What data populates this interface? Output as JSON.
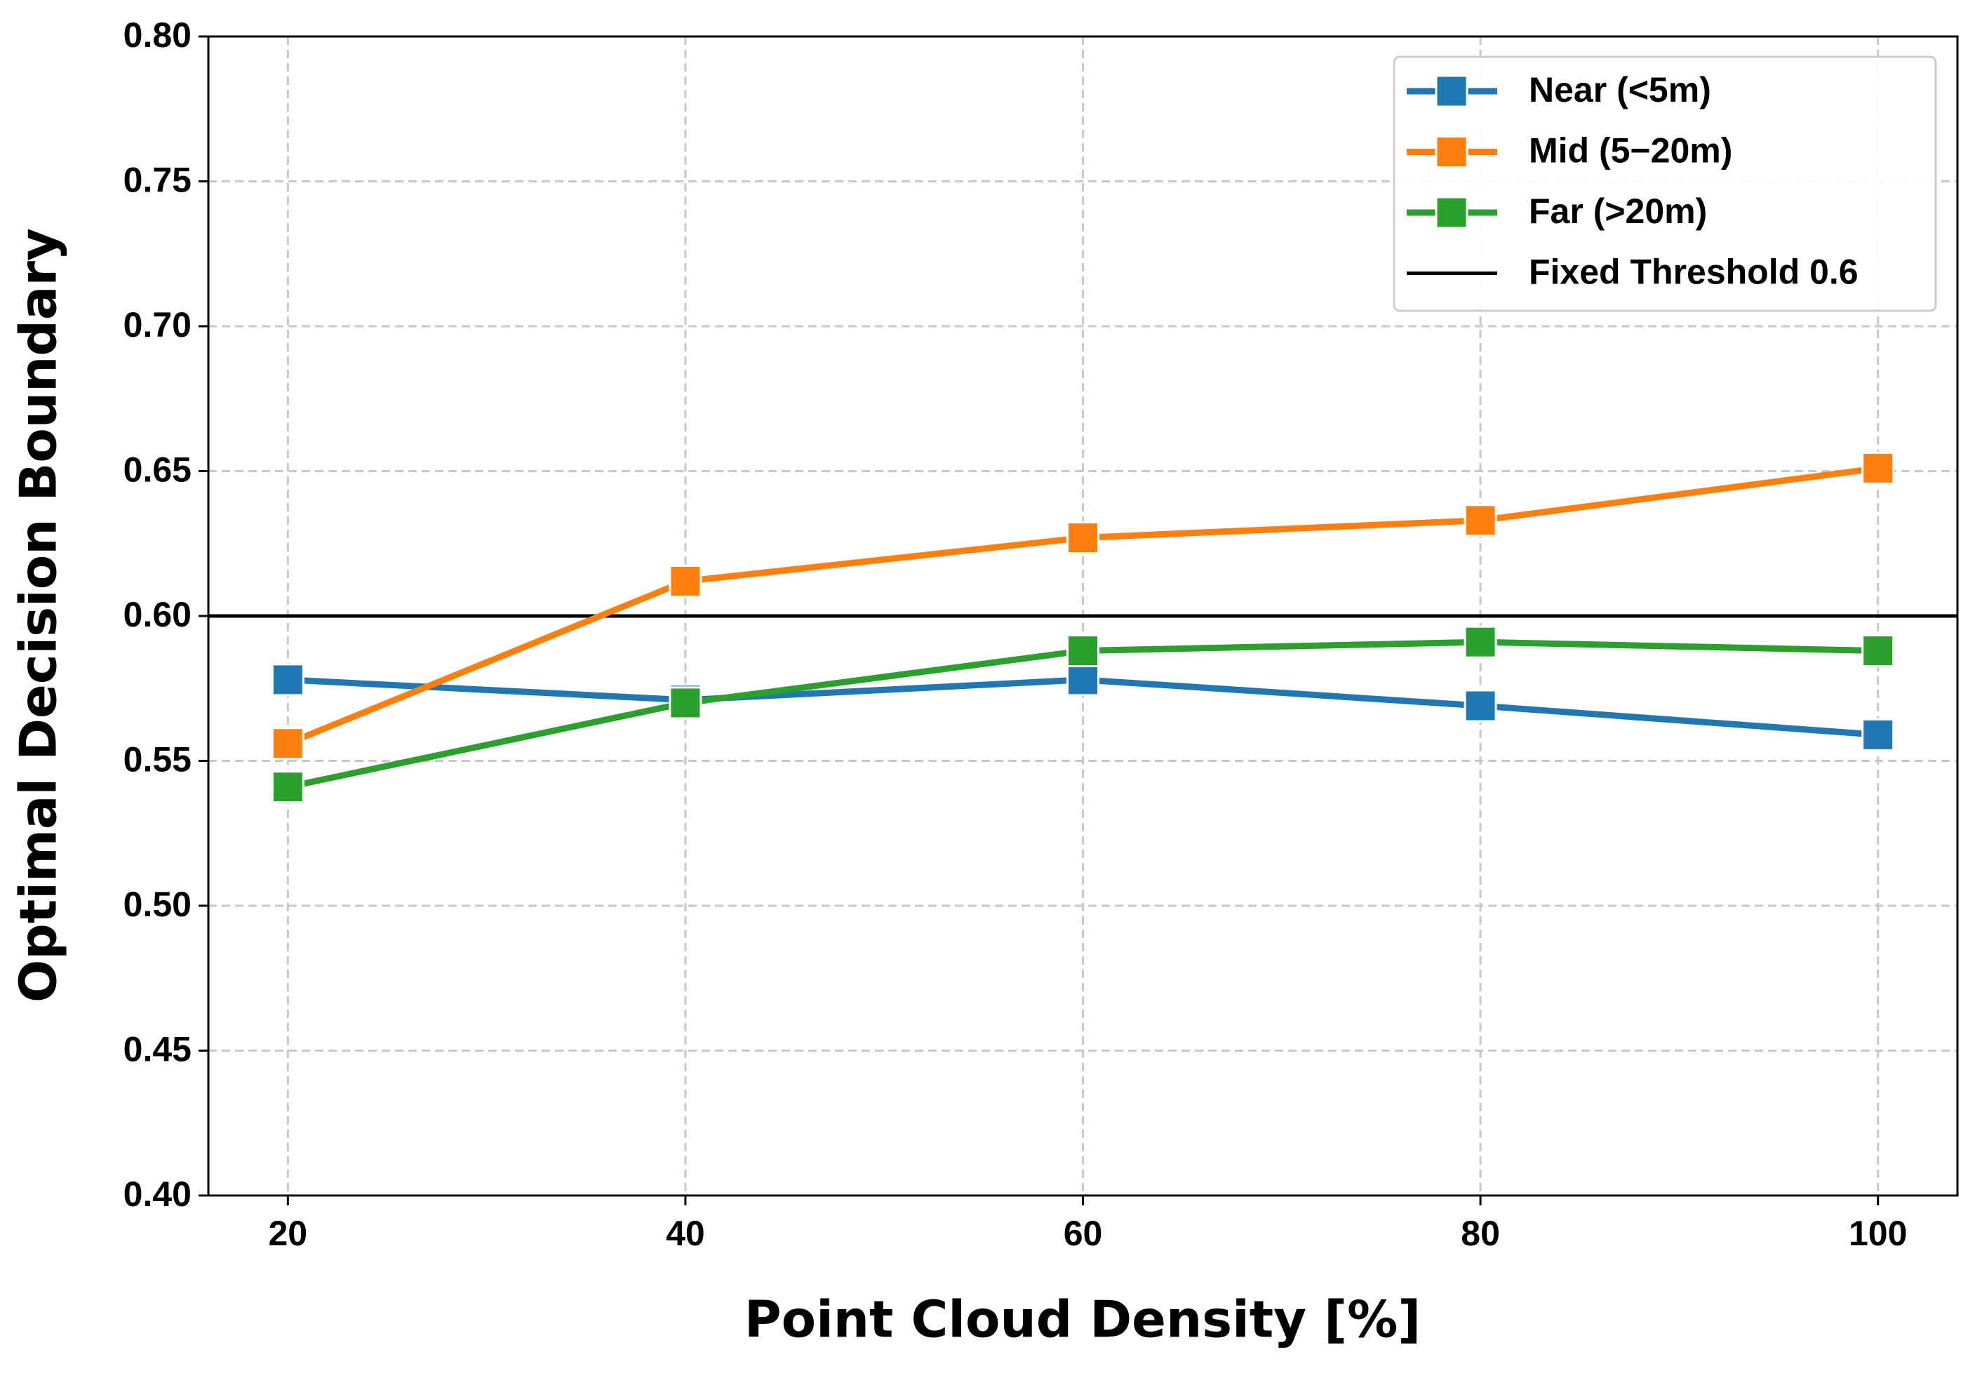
{
  "chart_data": {
    "type": "line",
    "xlabel": "Point Cloud Density [%]",
    "ylabel": "Optimal Decision Boundary",
    "x": [
      20,
      40,
      60,
      80,
      100
    ],
    "series": [
      {
        "name": "Near (<5m)",
        "color": "#1f77b4",
        "values": [
          0.578,
          0.571,
          0.578,
          0.569,
          0.559
        ]
      },
      {
        "name": "Mid (5−20m)",
        "color": "#ff7f0e",
        "values": [
          0.556,
          0.612,
          0.627,
          0.633,
          0.651
        ]
      },
      {
        "name": "Far (>20m)",
        "color": "#2ca02c",
        "values": [
          0.541,
          0.57,
          0.588,
          0.591,
          0.588
        ]
      }
    ],
    "reference_lines": [
      {
        "name": "Fixed Threshold 0.6",
        "value": 0.6,
        "color": "#000000"
      }
    ],
    "xlim": [
      16,
      104
    ],
    "ylim": [
      0.4,
      0.8
    ],
    "xticks": [
      20,
      40,
      60,
      80,
      100
    ],
    "yticks": [
      {
        "value": 0.4,
        "label": "0.40"
      },
      {
        "value": 0.45,
        "label": "0.45"
      },
      {
        "value": 0.5,
        "label": "0.50"
      },
      {
        "value": 0.55,
        "label": "0.55"
      },
      {
        "value": 0.6,
        "label": "0.60"
      },
      {
        "value": 0.65,
        "label": "0.65"
      },
      {
        "value": 0.7,
        "label": "0.70"
      },
      {
        "value": 0.75,
        "label": "0.75"
      },
      {
        "value": 0.8,
        "label": "0.80"
      }
    ],
    "grid": true,
    "legend": "upper right",
    "marker": "square"
  }
}
